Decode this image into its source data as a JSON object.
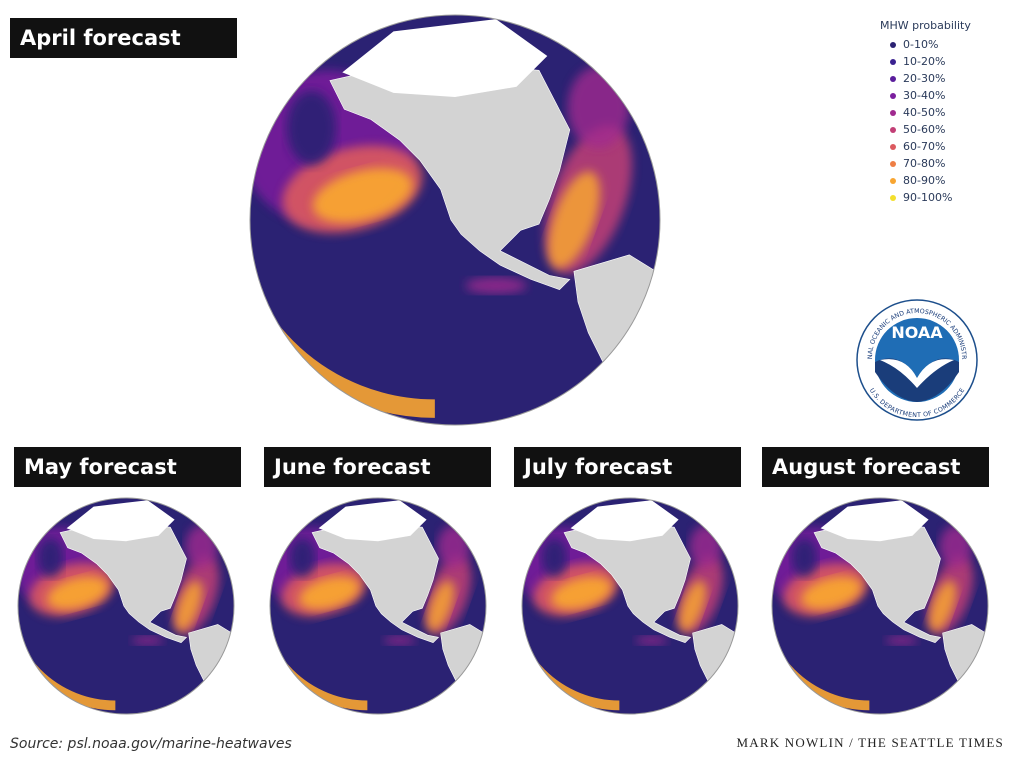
{
  "panels": [
    {
      "title": "April forecast"
    },
    {
      "title": "May forecast"
    },
    {
      "title": "June forecast"
    },
    {
      "title": "July forecast"
    },
    {
      "title": "August forecast"
    }
  ],
  "legend": {
    "title": "MHW probability",
    "items": [
      {
        "label": "0-10%",
        "color": "#2b2273"
      },
      {
        "label": "10-20%",
        "color": "#3a2290"
      },
      {
        "label": "20-30%",
        "color": "#5a1d9c"
      },
      {
        "label": "30-40%",
        "color": "#7b1f9e"
      },
      {
        "label": "40-50%",
        "color": "#a02a8f"
      },
      {
        "label": "50-60%",
        "color": "#c23f76"
      },
      {
        "label": "60-70%",
        "color": "#dc5a5f"
      },
      {
        "label": "70-80%",
        "color": "#ee7e45"
      },
      {
        "label": "80-90%",
        "color": "#f8a531"
      },
      {
        "label": "90-100%",
        "color": "#f3df2c"
      }
    ]
  },
  "logo": {
    "text": "NOAA",
    "ring_top": "NATIONAL OCEANIC AND ATMOSPHERIC ADMINISTRATION",
    "ring_bottom": "U.S. DEPARTMENT OF COMMERCE"
  },
  "source": "Source: psl.noaa.gov/marine-heatwaves",
  "credit": "MARK NOWLIN / THE SEATTLE TIMES"
}
